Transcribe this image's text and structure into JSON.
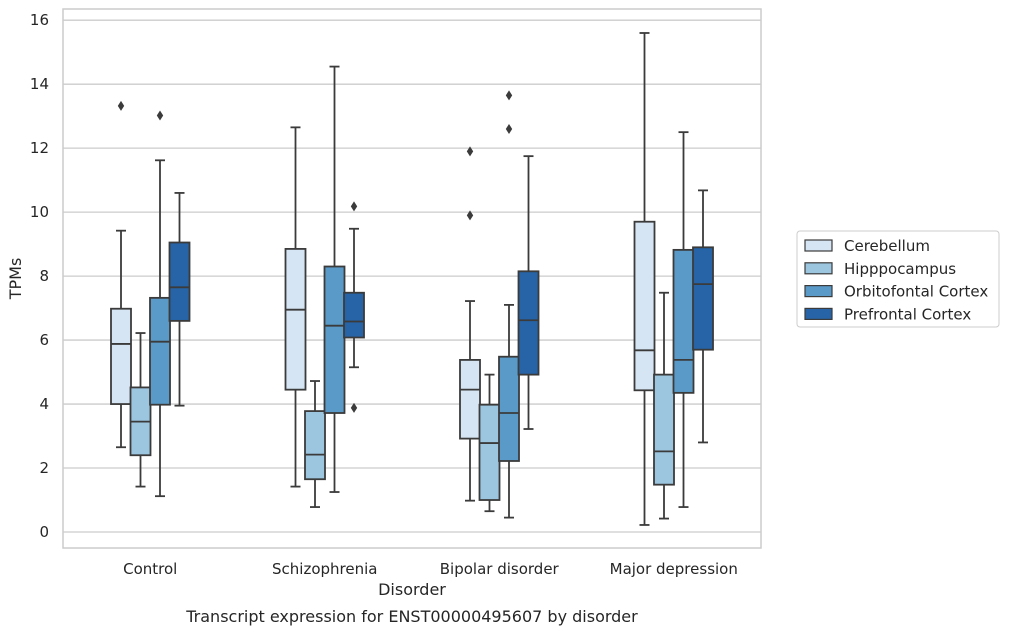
{
  "chart_data": {
    "type": "box",
    "xlabel": "Disorder",
    "ylabel": "TPMs",
    "caption": "Transcript expression for ENST00000495607 by disorder",
    "ylim": [
      -0.5,
      16.35
    ],
    "yticks": [
      0,
      2,
      4,
      6,
      8,
      10,
      12,
      14,
      16
    ],
    "grid": "horizontal",
    "legend_position": "right",
    "categories": [
      "Control",
      "Schizophrenia",
      "Bipolar disorder",
      "Major depression"
    ],
    "series": [
      {
        "name": "Cerebellum",
        "color": "#d6e5f3",
        "boxes": [
          {
            "min": 2.65,
            "q1": 4.0,
            "median": 5.88,
            "q3": 6.98,
            "max": 9.42,
            "outliers": [
              13.32
            ]
          },
          {
            "min": 1.42,
            "q1": 4.45,
            "median": 6.95,
            "q3": 8.85,
            "max": 12.65,
            "outliers": []
          },
          {
            "min": 0.98,
            "q1": 2.92,
            "median": 4.45,
            "q3": 5.38,
            "max": 7.22,
            "outliers": [
              9.9,
              11.9
            ]
          },
          {
            "min": 0.22,
            "q1": 4.43,
            "median": 5.68,
            "q3": 9.7,
            "max": 15.6,
            "outliers": []
          }
        ]
      },
      {
        "name": "Hipppocampus",
        "color": "#9cc5df",
        "boxes": [
          {
            "min": 1.42,
            "q1": 2.4,
            "median": 3.45,
            "q3": 4.52,
            "max": 6.22,
            "outliers": []
          },
          {
            "min": 0.78,
            "q1": 1.65,
            "median": 2.42,
            "q3": 3.78,
            "max": 4.72,
            "outliers": []
          },
          {
            "min": 0.65,
            "q1": 1.0,
            "median": 2.78,
            "q3": 3.98,
            "max": 4.92,
            "outliers": []
          },
          {
            "min": 0.42,
            "q1": 1.48,
            "median": 2.52,
            "q3": 4.92,
            "max": 7.48,
            "outliers": []
          }
        ]
      },
      {
        "name": "Orbitofontal Cortex",
        "color": "#5a9ac8",
        "boxes": [
          {
            "min": 1.12,
            "q1": 3.98,
            "median": 5.95,
            "q3": 7.32,
            "max": 11.62,
            "outliers": [
              13.02
            ]
          },
          {
            "min": 1.25,
            "q1": 3.72,
            "median": 6.45,
            "q3": 8.3,
            "max": 14.55,
            "outliers": []
          },
          {
            "min": 0.45,
            "q1": 2.22,
            "median": 3.72,
            "q3": 5.48,
            "max": 7.1,
            "outliers": [
              12.6,
              13.65
            ]
          },
          {
            "min": 0.78,
            "q1": 4.35,
            "median": 5.38,
            "q3": 8.82,
            "max": 12.5,
            "outliers": []
          }
        ]
      },
      {
        "name": "Prefrontal Cortex",
        "color": "#2664a7",
        "boxes": [
          {
            "min": 3.95,
            "q1": 6.6,
            "median": 7.65,
            "q3": 9.05,
            "max": 10.6,
            "outliers": []
          },
          {
            "min": 5.15,
            "q1": 6.08,
            "median": 6.58,
            "q3": 7.48,
            "max": 9.48,
            "outliers": [
              3.88,
              10.18
            ]
          },
          {
            "min": 3.22,
            "q1": 4.92,
            "median": 6.62,
            "q3": 8.15,
            "max": 11.75,
            "outliers": []
          },
          {
            "min": 2.8,
            "q1": 5.7,
            "median": 7.75,
            "q3": 8.9,
            "max": 10.68,
            "outliers": []
          }
        ]
      }
    ]
  }
}
